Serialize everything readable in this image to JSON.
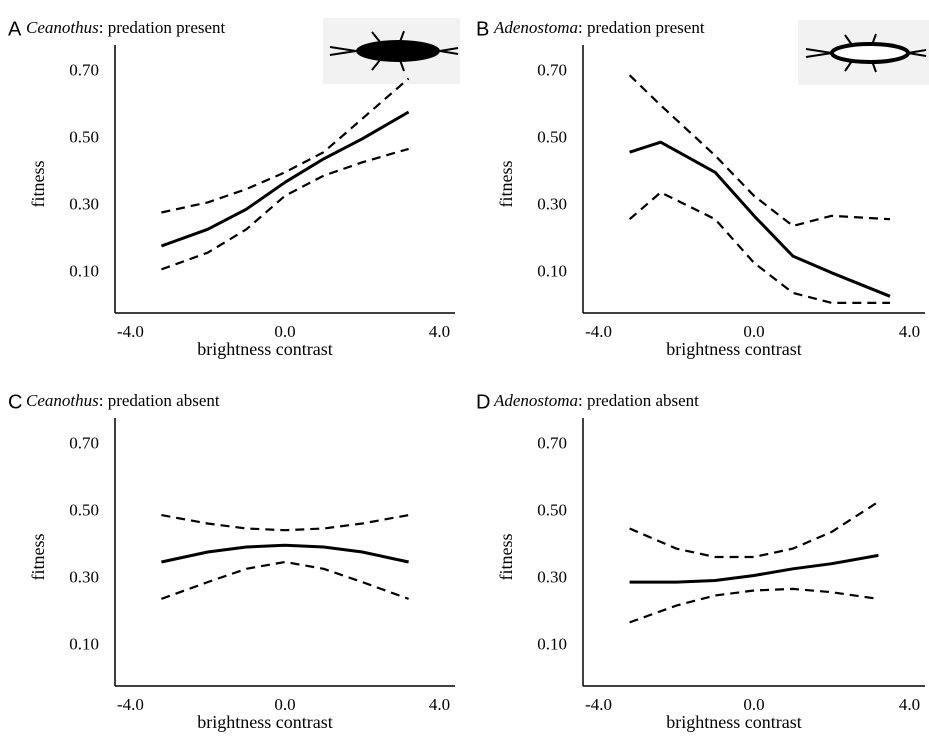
{
  "chart_data": [
    {
      "type": "line",
      "label": "A",
      "title_parts": [
        "Ceanothus",
        ": predation present"
      ],
      "x_label": "brightness contrast",
      "y_label": "fitness",
      "x": [
        -3.2,
        -2,
        -1,
        0,
        1,
        2,
        3.2
      ],
      "series": [
        {
          "color": "#000000",
          "style": "solid",
          "values": [
            0.18,
            0.23,
            0.29,
            0.37,
            0.44,
            0.5,
            0.58
          ]
        },
        {
          "color": "#000000",
          "style": "dashed",
          "values": [
            0.28,
            0.31,
            0.35,
            0.4,
            0.46,
            0.56,
            0.68
          ]
        },
        {
          "color": "#000000",
          "style": "dashed",
          "values": [
            0.11,
            0.16,
            0.23,
            0.33,
            0.39,
            0.43,
            0.47
          ]
        }
      ],
      "xlim": [
        -4.4,
        4.4
      ],
      "xticks": [
        {
          "value": -4,
          "label": "-4.0"
        },
        {
          "value": 0,
          "label": "0.0"
        },
        {
          "value": 4,
          "label": "4.0"
        }
      ],
      "ylim": [
        -0.02,
        0.78
      ],
      "yticks": [
        {
          "value": 0.1,
          "label": "0.10"
        },
        {
          "value": 0.3,
          "label": "0.30"
        },
        {
          "value": 0.5,
          "label": "0.50"
        },
        {
          "value": 0.7,
          "label": "0.70"
        }
      ],
      "grid": false
    },
    {
      "type": "line",
      "label": "B",
      "title_parts": [
        "Adenostoma",
        ": predation present"
      ],
      "x_label": "brightness contrast",
      "y_label": "fitness",
      "x": [
        -3.2,
        -2.4,
        -1,
        0,
        1,
        2,
        3.5
      ],
      "series": [
        {
          "color": "#000000",
          "style": "solid",
          "values": [
            0.46,
            0.49,
            0.4,
            0.27,
            0.15,
            0.1,
            0.03
          ]
        },
        {
          "color": "#000000",
          "style": "dashed",
          "values": [
            0.69,
            0.6,
            0.45,
            0.33,
            0.24,
            0.27,
            0.26
          ]
        },
        {
          "color": "#000000",
          "style": "dashed",
          "values": [
            0.26,
            0.34,
            0.26,
            0.13,
            0.04,
            0.01,
            0.01
          ]
        }
      ],
      "xlim": [
        -4.4,
        4.4
      ],
      "xticks": [
        {
          "value": -4,
          "label": "-4.0"
        },
        {
          "value": 0,
          "label": "0.0"
        },
        {
          "value": 4,
          "label": "4.0"
        }
      ],
      "ylim": [
        -0.02,
        0.78
      ],
      "yticks": [
        {
          "value": 0.1,
          "label": "0.10"
        },
        {
          "value": 0.3,
          "label": "0.30"
        },
        {
          "value": 0.5,
          "label": "0.50"
        },
        {
          "value": 0.7,
          "label": "0.70"
        }
      ],
      "grid": false
    },
    {
      "type": "line",
      "label": "C",
      "title_parts": [
        "Ceanothus",
        ": predation absent"
      ],
      "x_label": "brightness contrast",
      "y_label": "fitness",
      "x": [
        -3.2,
        -2,
        -1,
        0,
        1,
        2,
        3.2
      ],
      "series": [
        {
          "color": "#000000",
          "style": "solid",
          "values": [
            0.35,
            0.38,
            0.395,
            0.4,
            0.395,
            0.38,
            0.35
          ]
        },
        {
          "color": "#000000",
          "style": "dashed",
          "values": [
            0.49,
            0.465,
            0.45,
            0.445,
            0.45,
            0.465,
            0.49
          ]
        },
        {
          "color": "#000000",
          "style": "dashed",
          "values": [
            0.24,
            0.29,
            0.33,
            0.35,
            0.33,
            0.29,
            0.24
          ]
        }
      ],
      "xlim": [
        -4.4,
        4.4
      ],
      "xticks": [
        {
          "value": -4,
          "label": "-4.0"
        },
        {
          "value": 0,
          "label": "0.0"
        },
        {
          "value": 4,
          "label": "4.0"
        }
      ],
      "ylim": [
        -0.02,
        0.78
      ],
      "yticks": [
        {
          "value": 0.1,
          "label": "0.10"
        },
        {
          "value": 0.3,
          "label": "0.30"
        },
        {
          "value": 0.5,
          "label": "0.50"
        },
        {
          "value": 0.7,
          "label": "0.70"
        }
      ],
      "grid": false
    },
    {
      "type": "line",
      "label": "D",
      "title_parts": [
        "Adenostoma",
        ": predation absent"
      ],
      "x_label": "brightness contrast",
      "y_label": "fitness",
      "x": [
        -3.2,
        -2,
        -1,
        0,
        1,
        2,
        3.2
      ],
      "series": [
        {
          "color": "#000000",
          "style": "solid",
          "values": [
            0.29,
            0.29,
            0.295,
            0.31,
            0.33,
            0.345,
            0.37
          ]
        },
        {
          "color": "#000000",
          "style": "dashed",
          "values": [
            0.45,
            0.39,
            0.365,
            0.365,
            0.39,
            0.44,
            0.53
          ]
        },
        {
          "color": "#000000",
          "style": "dashed",
          "values": [
            0.17,
            0.22,
            0.25,
            0.265,
            0.27,
            0.26,
            0.24
          ]
        }
      ],
      "xlim": [
        -4.4,
        4.4
      ],
      "xticks": [
        {
          "value": -4,
          "label": "-4.0"
        },
        {
          "value": 0,
          "label": "0.0"
        },
        {
          "value": 4,
          "label": "4.0"
        }
      ],
      "ylim": [
        -0.02,
        0.78
      ],
      "yticks": [
        {
          "value": 0.1,
          "label": "0.10"
        },
        {
          "value": 0.3,
          "label": "0.30"
        },
        {
          "value": 0.5,
          "label": "0.50"
        },
        {
          "value": 0.7,
          "label": "0.70"
        }
      ],
      "grid": false
    }
  ]
}
